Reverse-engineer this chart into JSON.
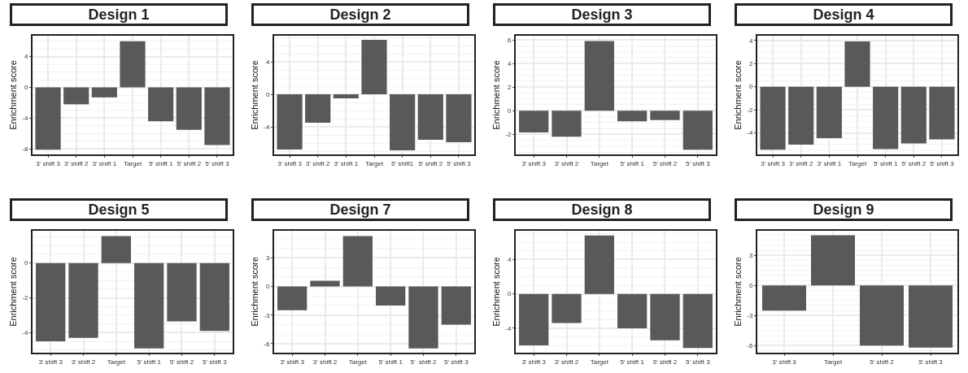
{
  "chart_data": [
    {
      "type": "bar",
      "title": "Design 1",
      "ylabel": "Enrichment score",
      "categories": [
        "3' shift 3",
        "3' shift 2",
        "3' shift 1",
        "Target",
        "5' shift 1",
        "5' shift 2",
        "5' shift 3"
      ],
      "values": [
        -8.1,
        -2.2,
        -1.3,
        6.0,
        -4.4,
        -5.5,
        -7.5
      ],
      "color": "#595959",
      "ylim": [
        -8.7,
        6.7
      ],
      "yticks": [
        -8,
        -4,
        0,
        4
      ],
      "grid": true
    },
    {
      "type": "bar",
      "title": "Design 2",
      "ylabel": "Enrichment score",
      "categories": [
        "3' shift 3",
        "3' shift 2",
        "3' shift 1",
        "Target",
        "5' shift1",
        "5' shift 2",
        "5' shift 3"
      ],
      "values": [
        -6.8,
        -3.5,
        -0.5,
        6.7,
        -6.9,
        -5.6,
        -5.9
      ],
      "color": "#595959",
      "ylim": [
        -7.4,
        7.2
      ],
      "yticks": [
        -4,
        0,
        4
      ],
      "grid": true
    },
    {
      "type": "bar",
      "title": "Design 3",
      "ylabel": "Enrichment score",
      "categories": [
        "3' shift 3",
        "3' shift 2",
        "Target",
        "5' shift 1",
        "5' shift 2",
        "5' shift 3"
      ],
      "values": [
        -1.85,
        -2.2,
        5.9,
        -0.9,
        -0.8,
        -3.3
      ],
      "color": "#595959",
      "ylim": [
        -3.7,
        6.35
      ],
      "yticks": [
        -2,
        0,
        2,
        4,
        6
      ],
      "grid": true
    },
    {
      "type": "bar",
      "title": "Design 4",
      "ylabel": "Enrichment score",
      "categories": [
        "3' shift 3",
        "3' shift 2",
        "3' shift 1",
        "Target",
        "5' shift 1",
        "5' shift 2",
        "5' shift 3"
      ],
      "values": [
        -5.45,
        -5.0,
        -4.45,
        3.9,
        -5.4,
        -4.9,
        -4.55
      ],
      "color": "#595959",
      "ylim": [
        -5.85,
        4.4
      ],
      "yticks": [
        -4,
        -2,
        0,
        2,
        4
      ],
      "grid": true
    },
    {
      "type": "bar",
      "title": "Design 5",
      "ylabel": "Enrichment score",
      "categories": [
        "3' shift 3",
        "3' shift 2",
        "Target",
        "5' shift 1",
        "5' shift 2",
        "5' shift 3"
      ],
      "values": [
        -4.5,
        -4.3,
        1.55,
        -4.9,
        -3.35,
        -3.9
      ],
      "color": "#595959",
      "ylim": [
        -5.15,
        1.85
      ],
      "yticks": [
        -4,
        -2,
        0
      ],
      "grid": true
    },
    {
      "type": "bar",
      "title": "Design 7",
      "ylabel": "Enrichment score",
      "categories": [
        "3' shift 3",
        "3' shift 2",
        "Target",
        "5' shift 1",
        "5'  shift 2",
        "5' shift 3"
      ],
      "values": [
        -2.5,
        0.6,
        5.3,
        -2.0,
        -6.5,
        -4.0
      ],
      "color": "#595959",
      "ylim": [
        -6.95,
        5.85
      ],
      "yticks": [
        -6,
        -3,
        0,
        3
      ],
      "grid": true
    },
    {
      "type": "bar",
      "title": "Design 8",
      "ylabel": "Enrichment score",
      "categories": [
        "3' shift 3",
        "3' shift 2",
        "Target",
        "5' shift 1",
        "5' shift 2",
        "5' shift 3"
      ],
      "values": [
        -6.0,
        -3.4,
        6.8,
        -4.0,
        -5.4,
        -6.3
      ],
      "color": "#595959",
      "ylim": [
        -6.85,
        7.35
      ],
      "yticks": [
        -4,
        0,
        4
      ],
      "grid": true
    },
    {
      "type": "bar",
      "title": "Design 9",
      "ylabel": "Enrichment score",
      "categories": [
        "3' shift 3",
        "Target",
        "5' shift 2",
        "5' shift 3"
      ],
      "values": [
        -2.5,
        5.0,
        -6.0,
        -6.2
      ],
      "color": "#595959",
      "ylim": [
        -6.7,
        5.45
      ],
      "yticks": [
        -6,
        -3,
        0,
        3
      ],
      "grid": true
    }
  ]
}
